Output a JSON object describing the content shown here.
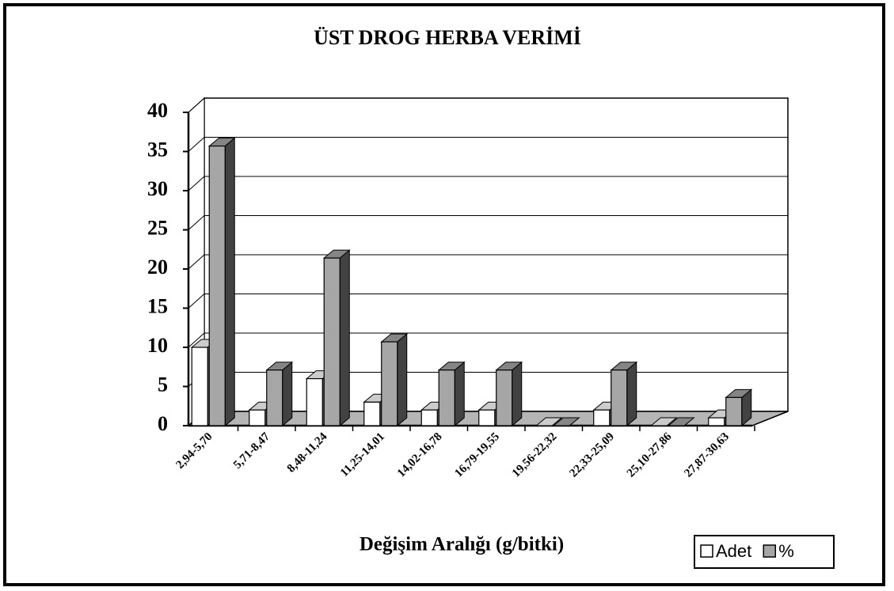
{
  "chart_data": {
    "type": "bar3d",
    "title": "ÜST DROG HERBA VERİMİ",
    "x_label": "Değişim Aralığı (g/bitki)",
    "categories": [
      "2,94-5,70",
      "5,71-8,47",
      "8,48-11,24",
      "11,25-14,01",
      "14,02-16,78",
      "16,79-19,55",
      "19,56-22,32",
      "22,33-25,09",
      "25,10-27,86",
      "27,87-30,63"
    ],
    "series": [
      {
        "name": "Adet",
        "color": "#ffffff",
        "values": [
          10,
          2,
          6,
          3,
          2,
          2,
          0,
          2,
          0,
          1
        ]
      },
      {
        "name": "%",
        "color": "#a6a6a6",
        "values": [
          35.7,
          7.1,
          21.4,
          10.7,
          7.1,
          7.1,
          0,
          7.1,
          0,
          3.6
        ]
      }
    ],
    "ylim": [
      0,
      40
    ],
    "yticks": [
      0,
      5,
      10,
      15,
      20,
      25,
      30,
      35,
      40
    ],
    "grid": true,
    "legend": "bottom-right"
  }
}
